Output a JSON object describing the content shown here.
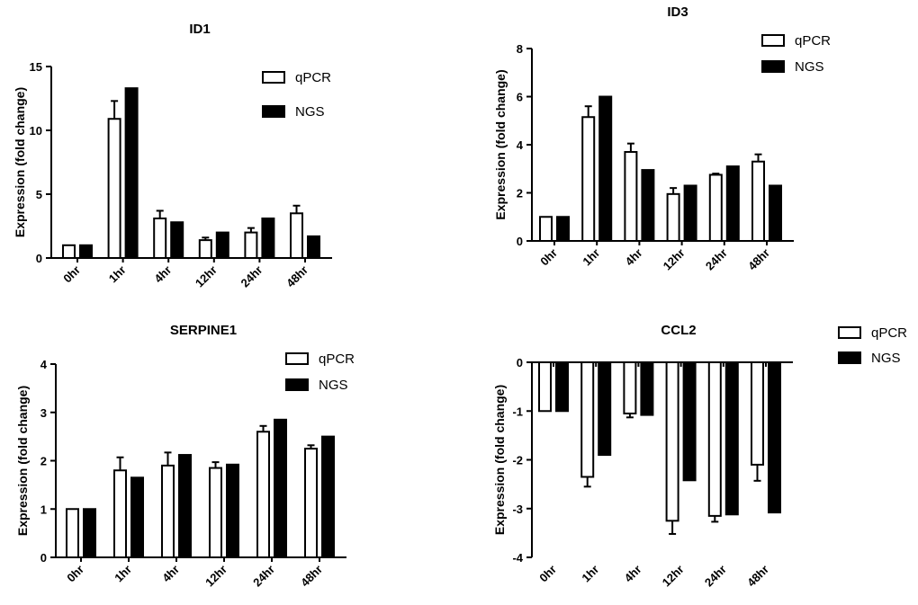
{
  "chart_data": [
    {
      "type": "bar",
      "title": "ID1",
      "ylabel": "Expression (fold change)",
      "xlabel": "",
      "categories": [
        "0hr",
        "1hr",
        "4hr",
        "12hr",
        "24hr",
        "48hr"
      ],
      "ylim": [
        0,
        15
      ],
      "yticks": [
        "0",
        "5",
        "10",
        "15"
      ],
      "legend_position": "top-right",
      "series": [
        {
          "name": "qPCR",
          "fill": "#ffffff",
          "values": [
            1.0,
            10.9,
            3.1,
            1.4,
            2.0,
            3.5
          ],
          "errors": [
            0,
            1.4,
            0.6,
            0.2,
            0.35,
            0.6
          ]
        },
        {
          "name": "NGS",
          "fill": "#000000",
          "values": [
            1.0,
            13.3,
            2.8,
            2.0,
            3.1,
            1.7
          ],
          "errors": [
            0,
            0,
            0,
            0,
            0,
            0
          ]
        }
      ]
    },
    {
      "type": "bar",
      "title": "ID3",
      "ylabel": "Expression (fold change)",
      "xlabel": "",
      "categories": [
        "0hr",
        "1hr",
        "4hr",
        "12hr",
        "24hr",
        "48hr"
      ],
      "ylim": [
        0,
        8
      ],
      "yticks": [
        "0",
        "2",
        "4",
        "6",
        "8"
      ],
      "legend_position": "top-right",
      "series": [
        {
          "name": "qPCR",
          "fill": "#ffffff",
          "values": [
            1.0,
            5.15,
            3.7,
            1.95,
            2.75,
            3.3
          ],
          "errors": [
            0,
            0.45,
            0.35,
            0.25,
            0.05,
            0.3
          ]
        },
        {
          "name": "NGS",
          "fill": "#000000",
          "values": [
            1.0,
            6.0,
            2.95,
            2.3,
            3.1,
            2.3
          ],
          "errors": [
            0,
            0,
            0,
            0,
            0,
            0
          ]
        }
      ]
    },
    {
      "type": "bar",
      "title": "SERPINE1",
      "ylabel": "Expression (fold change)",
      "xlabel": "",
      "categories": [
        "0hr",
        "1hr",
        "4hr",
        "12hr",
        "24hr",
        "48hr"
      ],
      "ylim": [
        0,
        4
      ],
      "yticks": [
        "0",
        "1",
        "2",
        "3",
        "4"
      ],
      "legend_position": "top-right",
      "series": [
        {
          "name": "qPCR",
          "fill": "#ffffff",
          "values": [
            1.0,
            1.8,
            1.9,
            1.85,
            2.6,
            2.25
          ],
          "errors": [
            0,
            0.27,
            0.27,
            0.12,
            0.12,
            0.07
          ]
        },
        {
          "name": "NGS",
          "fill": "#000000",
          "values": [
            1.0,
            1.65,
            2.12,
            1.92,
            2.85,
            2.5
          ],
          "errors": [
            0,
            0,
            0,
            0,
            0,
            0
          ]
        }
      ]
    },
    {
      "type": "bar",
      "title": "CCL2",
      "ylabel": "Expression (fold change)",
      "xlabel": "",
      "categories": [
        "0hr",
        "1hr",
        "4hr",
        "12hr",
        "24hr",
        "48hr"
      ],
      "ylim": [
        -4,
        0
      ],
      "yticks": [
        "0",
        "-1",
        "-2",
        "-3",
        "-4"
      ],
      "legend_position": "top-right",
      "series": [
        {
          "name": "qPCR",
          "fill": "#ffffff",
          "values": [
            -1.0,
            -2.35,
            -1.05,
            -3.25,
            -3.15,
            -2.1
          ],
          "errors": [
            0,
            0.2,
            0.08,
            0.27,
            0.12,
            0.33
          ]
        },
        {
          "name": "NGS",
          "fill": "#000000",
          "values": [
            -1.0,
            -1.9,
            -1.08,
            -2.42,
            -3.12,
            -3.08
          ],
          "errors": [
            0,
            0,
            0,
            0,
            0,
            0
          ]
        }
      ]
    }
  ]
}
